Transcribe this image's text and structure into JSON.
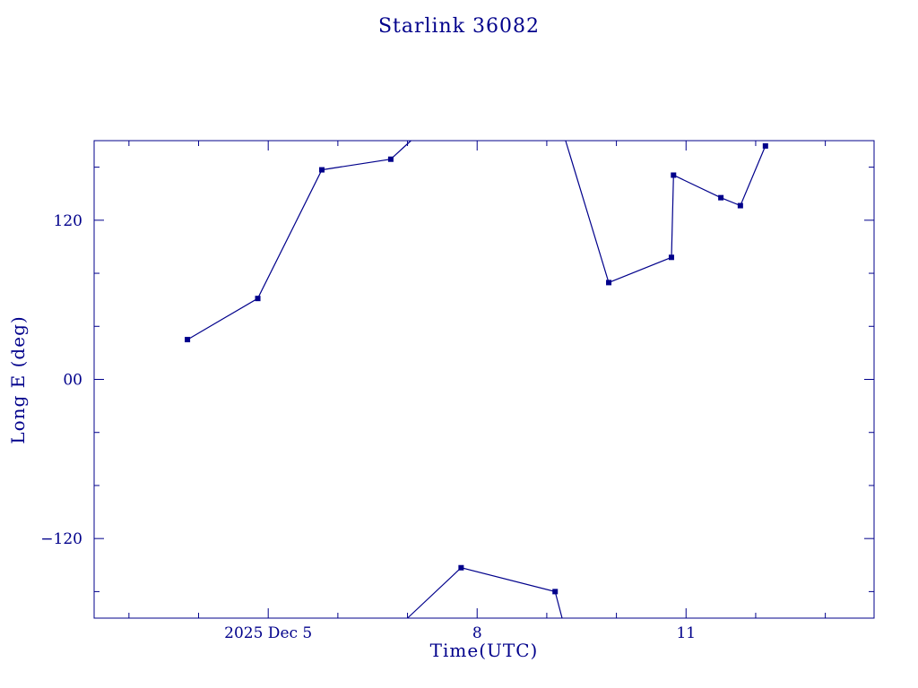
{
  "page": {
    "background": "#ffffff"
  },
  "chart_data": {
    "type": "line",
    "title": "Starlink 36082",
    "xlabel": "Time(UTC)",
    "ylabel": "Long E (deg)",
    "color": "#00008B",
    "grid": false,
    "legend": "none",
    "xlim": [
      2.5,
      13.7
    ],
    "ylim": [
      -180,
      180
    ],
    "x_major_ticks": [
      {
        "value": 5,
        "label": "2025 Dec 5"
      },
      {
        "value": 8,
        "label": "8"
      },
      {
        "value": 11,
        "label": "11"
      }
    ],
    "x_minor_ticks": [
      3,
      4,
      6,
      7,
      9,
      10,
      12,
      13
    ],
    "y_major_ticks": [
      {
        "value": 120,
        "label": "120"
      },
      {
        "value": 0,
        "label": "00"
      },
      {
        "value": -120,
        "label": "−120"
      }
    ],
    "y_minor_ticks": [
      -160,
      -80,
      -40,
      40,
      80,
      160
    ],
    "series": [
      {
        "name": "Starlink 36082 longitude east",
        "marker": "square",
        "points": [
          {
            "x": 3.84,
            "y": 30
          },
          {
            "x": 4.85,
            "y": 61
          },
          {
            "x": 5.77,
            "y": 158
          },
          {
            "x": 6.76,
            "y": 166
          },
          {
            "x": 9.89,
            "y": 73
          },
          {
            "x": 10.79,
            "y": 92
          },
          {
            "x": 10.82,
            "y": 154
          },
          {
            "x": 11.5,
            "y": 137
          },
          {
            "x": 11.78,
            "y": 131
          },
          {
            "x": 12.14,
            "y": 176
          },
          {
            "x": 7.77,
            "y": -142
          },
          {
            "x": 9.12,
            "y": -160
          }
        ],
        "line_segments": [
          [
            [
              3.84,
              30
            ],
            [
              4.85,
              61
            ],
            [
              5.77,
              158
            ],
            [
              6.76,
              166
            ],
            [
              7.05,
              180
            ]
          ],
          [
            [
              9.27,
              180
            ],
            [
              9.89,
              73
            ],
            [
              10.79,
              92
            ],
            [
              10.82,
              154
            ],
            [
              11.5,
              137
            ],
            [
              11.78,
              131
            ],
            [
              12.14,
              176
            ]
          ],
          [
            [
              7.0,
              -180
            ],
            [
              7.77,
              -142
            ],
            [
              9.12,
              -160
            ],
            [
              9.22,
              -180
            ]
          ]
        ]
      }
    ]
  }
}
